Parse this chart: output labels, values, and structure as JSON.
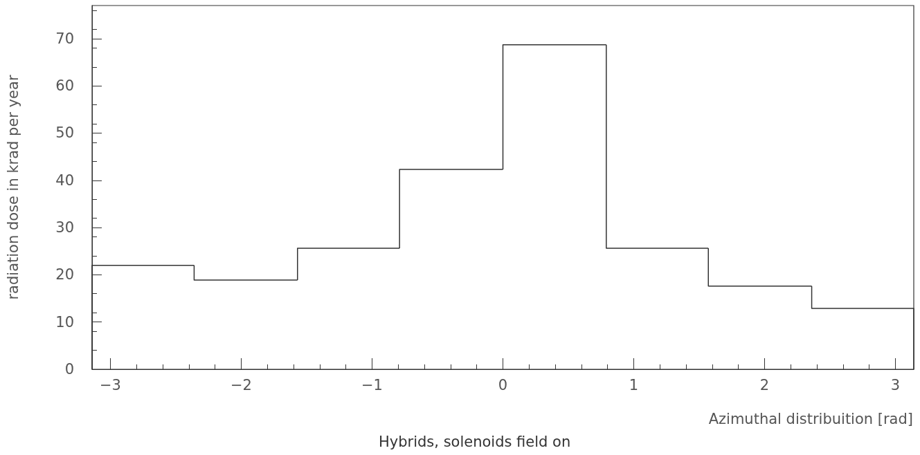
{
  "chart_data": {
    "type": "histogram",
    "xlabel": "Azimuthal distribuition [rad]",
    "ylabel": "radiation dose in krad per year",
    "annotations": [
      "Hybrids, solenoids field on"
    ],
    "bins": [
      -3.14,
      -2.36,
      -1.57,
      -0.79,
      0,
      0.79,
      1.57,
      2.36,
      3.14
    ],
    "values": [
      22,
      18.9,
      25.6,
      42.3,
      68.7,
      25.6,
      17.6,
      12.9
    ],
    "color": "#333333",
    "xlim": [
      -3.14,
      3.14
    ],
    "xticks": [
      -3,
      -2,
      -1,
      0,
      1,
      2,
      3
    ],
    "ylim": [
      0,
      77
    ],
    "yticks": [
      0,
      10,
      20,
      30,
      40,
      50,
      60,
      70
    ],
    "grid": false
  }
}
